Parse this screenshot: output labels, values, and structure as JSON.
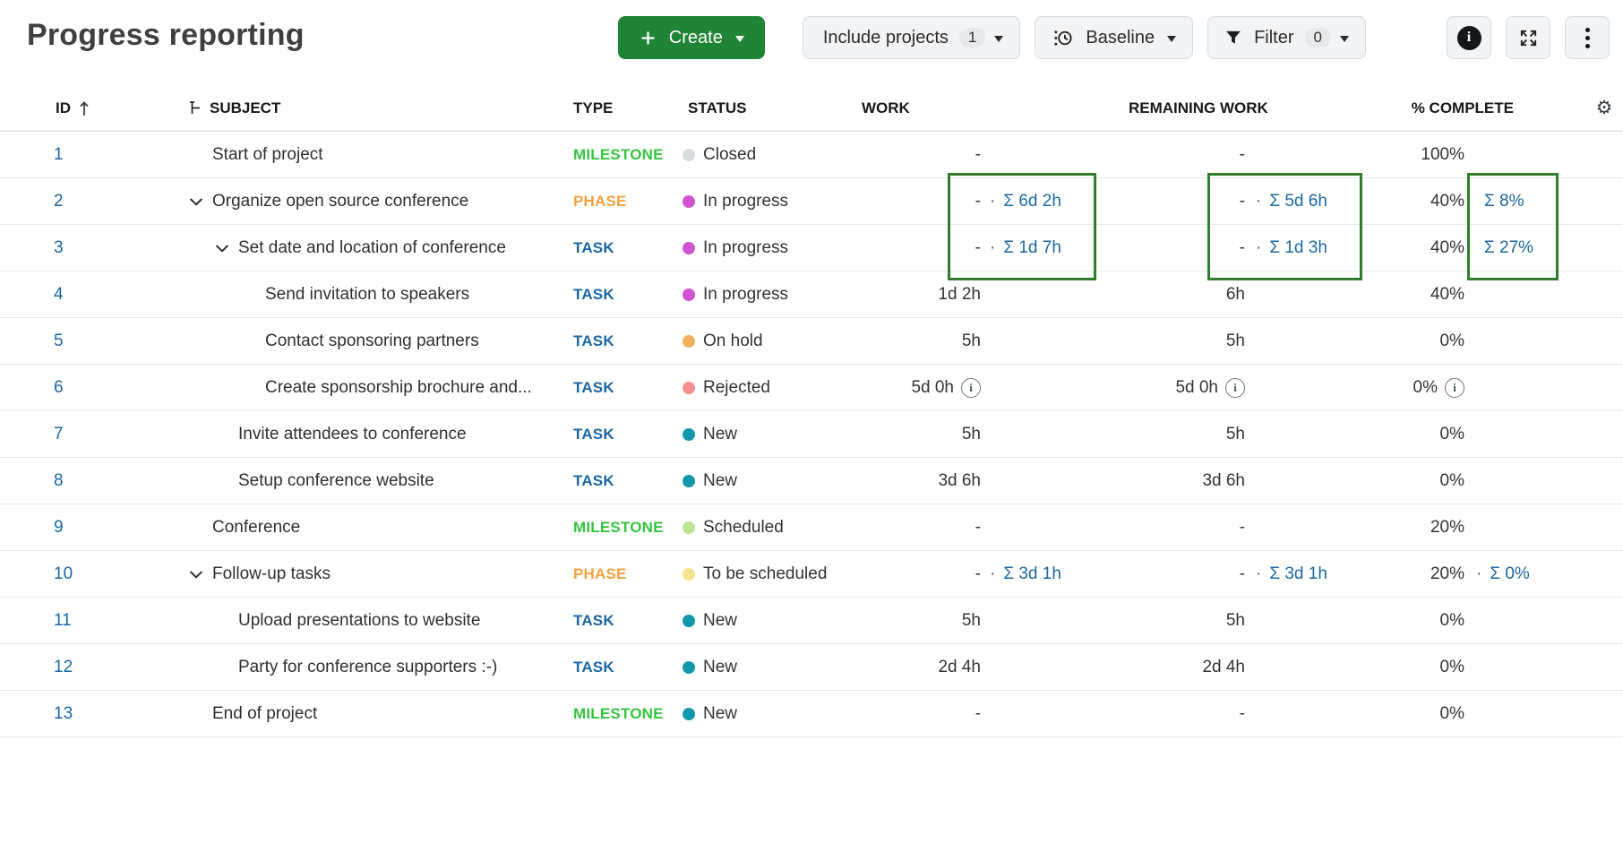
{
  "page": {
    "title": "Progress reporting"
  },
  "toolbar": {
    "create_label": "Create",
    "include_projects_label": "Include projects",
    "include_projects_count": "1",
    "baseline_label": "Baseline",
    "filter_label": "Filter",
    "filter_count": "0",
    "icons": [
      "plus-icon",
      "baseline-clock-icon",
      "filter-funnel-icon",
      "info-icon",
      "fullscreen-icon",
      "more-kebab-icon"
    ]
  },
  "table": {
    "columns": {
      "id": "ID",
      "subject": "SUBJECT",
      "type": "TYPE",
      "status": "STATUS",
      "work": "WORK",
      "remaining_work": "REMAINING WORK",
      "percent_complete": "% COMPLETE"
    },
    "type_colors": {
      "MILESTONE": "#35c53f",
      "PHASE": "#f7a13d",
      "TASK": "#1a67a3"
    },
    "status_colors": {
      "Closed": "#d7dcde",
      "In progress": "#d153d1",
      "On hold": "#f2b05e",
      "Rejected": "#f88f8f",
      "New": "#1198ac",
      "Scheduled": "#bee392",
      "To be scheduled": "#f6e28a"
    },
    "link_color": "#1a67a3",
    "rows": [
      {
        "id": "1",
        "level": 0,
        "chevron": false,
        "subject": "Start of project",
        "type": "MILESTONE",
        "status": "Closed",
        "work": {
          "value": "-",
          "info": false,
          "sep": "",
          "sum": ""
        },
        "remaining": {
          "value": "-",
          "info": false,
          "sep": "",
          "sum": ""
        },
        "pct": {
          "value": "100%",
          "info": false,
          "sep": "",
          "sum": ""
        }
      },
      {
        "id": "2",
        "level": 0,
        "chevron": true,
        "subject": "Organize open source conference",
        "type": "PHASE",
        "status": "In progress",
        "work": {
          "value": "-",
          "info": false,
          "sep": "·",
          "sum": "Σ 6d 2h"
        },
        "remaining": {
          "value": "-",
          "info": false,
          "sep": "·",
          "sum": "Σ 5d 6h"
        },
        "pct": {
          "value": "40%",
          "info": false,
          "sep": "",
          "sum": "Σ 8%"
        }
      },
      {
        "id": "3",
        "level": 1,
        "chevron": true,
        "subject": "Set date and location of conference",
        "type": "TASK",
        "status": "In progress",
        "work": {
          "value": "-",
          "info": false,
          "sep": "·",
          "sum": "Σ 1d 7h"
        },
        "remaining": {
          "value": "-",
          "info": false,
          "sep": "·",
          "sum": "Σ 1d 3h"
        },
        "pct": {
          "value": "40%",
          "info": false,
          "sep": "",
          "sum": "Σ 27%"
        }
      },
      {
        "id": "4",
        "level": 2,
        "chevron": false,
        "subject": "Send invitation to speakers",
        "type": "TASK",
        "status": "In progress",
        "work": {
          "value": "1d 2h",
          "info": false,
          "sep": "",
          "sum": ""
        },
        "remaining": {
          "value": "6h",
          "info": false,
          "sep": "",
          "sum": ""
        },
        "pct": {
          "value": "40%",
          "info": false,
          "sep": "",
          "sum": ""
        }
      },
      {
        "id": "5",
        "level": 2,
        "chevron": false,
        "subject": "Contact sponsoring partners",
        "type": "TASK",
        "status": "On hold",
        "work": {
          "value": "5h",
          "info": false,
          "sep": "",
          "sum": ""
        },
        "remaining": {
          "value": "5h",
          "info": false,
          "sep": "",
          "sum": ""
        },
        "pct": {
          "value": "0%",
          "info": false,
          "sep": "",
          "sum": ""
        }
      },
      {
        "id": "6",
        "level": 2,
        "chevron": false,
        "subject": "Create sponsorship brochure and...",
        "type": "TASK",
        "status": "Rejected",
        "work": {
          "value": "5d 0h",
          "info": true,
          "sep": "",
          "sum": ""
        },
        "remaining": {
          "value": "5d 0h",
          "info": true,
          "sep": "",
          "sum": ""
        },
        "pct": {
          "value": "0%",
          "info": true,
          "sep": "",
          "sum": ""
        }
      },
      {
        "id": "7",
        "level": 1,
        "chevron": false,
        "subject": "Invite attendees to conference",
        "type": "TASK",
        "status": "New",
        "work": {
          "value": "5h",
          "info": false,
          "sep": "",
          "sum": ""
        },
        "remaining": {
          "value": "5h",
          "info": false,
          "sep": "",
          "sum": ""
        },
        "pct": {
          "value": "0%",
          "info": false,
          "sep": "",
          "sum": ""
        }
      },
      {
        "id": "8",
        "level": 1,
        "chevron": false,
        "subject": "Setup conference website",
        "type": "TASK",
        "status": "New",
        "work": {
          "value": "3d 6h",
          "info": false,
          "sep": "",
          "sum": ""
        },
        "remaining": {
          "value": "3d 6h",
          "info": false,
          "sep": "",
          "sum": ""
        },
        "pct": {
          "value": "0%",
          "info": false,
          "sep": "",
          "sum": ""
        }
      },
      {
        "id": "9",
        "level": 0,
        "chevron": false,
        "subject": "Conference",
        "type": "MILESTONE",
        "status": "Scheduled",
        "work": {
          "value": "-",
          "info": false,
          "sep": "",
          "sum": ""
        },
        "remaining": {
          "value": "-",
          "info": false,
          "sep": "",
          "sum": ""
        },
        "pct": {
          "value": "20%",
          "info": false,
          "sep": "",
          "sum": ""
        }
      },
      {
        "id": "10",
        "level": 0,
        "chevron": true,
        "subject": "Follow-up tasks",
        "type": "PHASE",
        "status": "To be scheduled",
        "work": {
          "value": "-",
          "info": false,
          "sep": "·",
          "sum": "Σ 3d 1h"
        },
        "remaining": {
          "value": "-",
          "info": false,
          "sep": "·",
          "sum": "Σ 3d 1h"
        },
        "pct": {
          "value": "20%",
          "info": false,
          "sep": "·",
          "sum": "Σ 0%"
        }
      },
      {
        "id": "11",
        "level": 1,
        "chevron": false,
        "subject": "Upload presentations to website",
        "type": "TASK",
        "status": "New",
        "work": {
          "value": "5h",
          "info": false,
          "sep": "",
          "sum": ""
        },
        "remaining": {
          "value": "5h",
          "info": false,
          "sep": "",
          "sum": ""
        },
        "pct": {
          "value": "0%",
          "info": false,
          "sep": "",
          "sum": ""
        }
      },
      {
        "id": "12",
        "level": 1,
        "chevron": false,
        "subject": "Party for conference supporters :-)",
        "type": "TASK",
        "status": "New",
        "work": {
          "value": "2d 4h",
          "info": false,
          "sep": "",
          "sum": ""
        },
        "remaining": {
          "value": "2d 4h",
          "info": false,
          "sep": "",
          "sum": ""
        },
        "pct": {
          "value": "0%",
          "info": false,
          "sep": "",
          "sum": ""
        }
      },
      {
        "id": "13",
        "level": 0,
        "chevron": false,
        "subject": "End of project",
        "type": "MILESTONE",
        "status": "New",
        "work": {
          "value": "-",
          "info": false,
          "sep": "",
          "sum": ""
        },
        "remaining": {
          "value": "-",
          "info": false,
          "sep": "",
          "sum": ""
        },
        "pct": {
          "value": "0%",
          "info": false,
          "sep": "",
          "sum": ""
        }
      }
    ]
  },
  "annotations": {
    "color": "#2f7d2d",
    "boxes": [
      "work-sums-rows-2-3",
      "remaining-work-sums-rows-2-3",
      "percent-complete-sums-rows-2-3"
    ]
  }
}
